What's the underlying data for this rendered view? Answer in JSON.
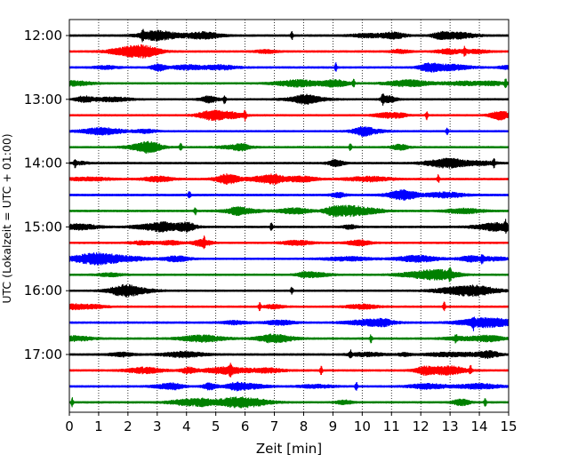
{
  "chart_data": {
    "type": "line",
    "xlabel": "Zeit  [min]",
    "ylabel": "UTC (Lokalzeit = UTC + 01:00)",
    "xlim": [
      0,
      15
    ],
    "x_ticks": [
      0,
      1,
      2,
      3,
      4,
      5,
      6,
      7,
      8,
      9,
      10,
      11,
      12,
      13,
      14,
      15
    ],
    "grid": "vertical dotted",
    "colors": [
      "#000000",
      "#ff0000",
      "#0000ff",
      "#008000"
    ],
    "y_ticks": [
      {
        "label": "12:00",
        "row": 0
      },
      {
        "label": "13:00",
        "row": 4
      },
      {
        "label": "14:00",
        "row": 8
      },
      {
        "label": "15:00",
        "row": 12
      },
      {
        "label": "16:00",
        "row": 16
      },
      {
        "label": "17:00",
        "row": 20
      }
    ],
    "traces": [
      {
        "start": "12:00",
        "color": "#000000",
        "spikes_min": [
          2.5,
          7.6
        ]
      },
      {
        "start": "12:15",
        "color": "#ff0000",
        "spikes_min": [
          13.5
        ]
      },
      {
        "start": "12:30",
        "color": "#0000ff",
        "spikes_min": [
          9.1
        ]
      },
      {
        "start": "12:45",
        "color": "#008000",
        "spikes_min": [
          9.7,
          14.9
        ]
      },
      {
        "start": "13:00",
        "color": "#000000",
        "spikes_min": [
          5.3,
          10.7
        ]
      },
      {
        "start": "13:15",
        "color": "#ff0000",
        "spikes_min": [
          6.0,
          12.2
        ]
      },
      {
        "start": "13:30",
        "color": "#0000ff",
        "spikes_min": [
          12.9
        ]
      },
      {
        "start": "13:45",
        "color": "#008000",
        "spikes_min": [
          3.8,
          9.6
        ]
      },
      {
        "start": "14:00",
        "color": "#000000",
        "spikes_min": [
          0.2,
          14.5
        ]
      },
      {
        "start": "14:15",
        "color": "#ff0000",
        "spikes_min": [
          12.6
        ]
      },
      {
        "start": "14:30",
        "color": "#0000ff",
        "spikes_min": [
          4.1
        ]
      },
      {
        "start": "14:45",
        "color": "#008000",
        "spikes_min": [
          4.3
        ]
      },
      {
        "start": "15:00",
        "color": "#000000",
        "spikes_min": [
          6.9,
          14.9
        ]
      },
      {
        "start": "15:15",
        "color": "#ff0000",
        "spikes_min": [
          4.6
        ]
      },
      {
        "start": "15:30",
        "color": "#0000ff",
        "spikes_min": [
          14.1
        ]
      },
      {
        "start": "15:45",
        "color": "#008000",
        "spikes_min": [
          13.0
        ]
      },
      {
        "start": "16:00",
        "color": "#000000",
        "spikes_min": [
          7.6
        ]
      },
      {
        "start": "16:15",
        "color": "#ff0000",
        "spikes_min": [
          6.5,
          12.8
        ]
      },
      {
        "start": "16:30",
        "color": "#0000ff",
        "spikes_min": [
          13.8
        ]
      },
      {
        "start": "16:45",
        "color": "#008000",
        "spikes_min": [
          10.3,
          13.2
        ]
      },
      {
        "start": "17:00",
        "color": "#000000",
        "spikes_min": [
          9.6
        ]
      },
      {
        "start": "17:15",
        "color": "#ff0000",
        "spikes_min": [
          5.5,
          8.6,
          13.7
        ]
      },
      {
        "start": "17:30",
        "color": "#0000ff",
        "spikes_min": [
          9.8
        ]
      },
      {
        "start": "17:45",
        "color": "#008000",
        "spikes_min": [
          0.1,
          14.2
        ]
      }
    ]
  }
}
